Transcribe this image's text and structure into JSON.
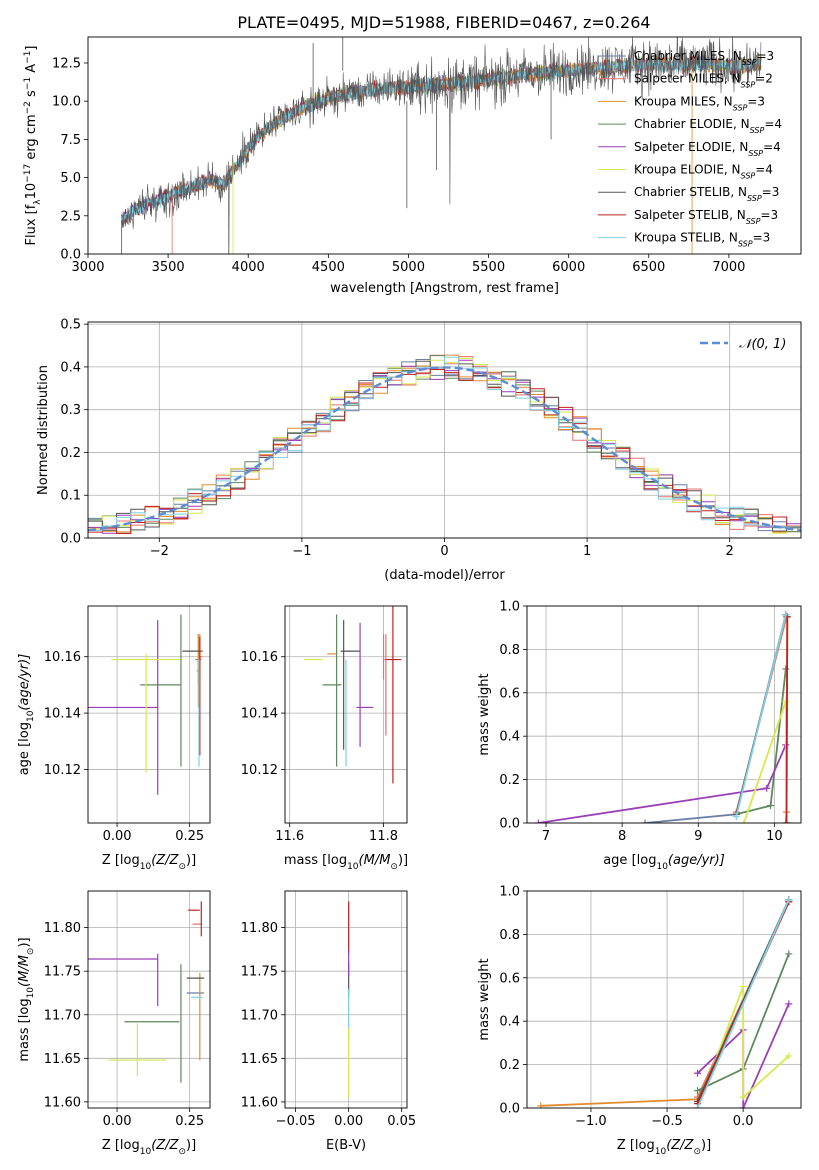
{
  "figure": {
    "title": "PLATE=0495, MJD=51988, FIBERID=0467, z=0.264"
  },
  "models": [
    {
      "name": "Chabrier MILES",
      "nssp": 3,
      "color": "#6a7fa3"
    },
    {
      "name": "Salpeter MILES",
      "nssp": 2,
      "color": "#e8706e"
    },
    {
      "name": "Kroupa MILES",
      "nssp": 3,
      "color": "#e38b2c"
    },
    {
      "name": "Chabrier ELODIE",
      "nssp": 4,
      "color": "#5c8a5c"
    },
    {
      "name": "Salpeter ELODIE",
      "nssp": 4,
      "color": "#9b3fb8"
    },
    {
      "name": "Kroupa ELODIE",
      "nssp": 4,
      "color": "#d6e84a"
    },
    {
      "name": "Chabrier STELIB",
      "nssp": 3,
      "color": "#555555"
    },
    {
      "name": "Salpeter STELIB",
      "nssp": 3,
      "color": "#c0201f"
    },
    {
      "name": "Kroupa STELIB",
      "nssp": 3,
      "color": "#7fd0e0"
    }
  ],
  "legend_suffix": "N",
  "legend_sub": "SSP",
  "chart_data": [
    {
      "id": "spectrum",
      "type": "line",
      "xlabel": "wavelength [Angstrom, rest frame]",
      "ylabel_main": "Flux [f",
      "ylabel_lambda": "λ",
      "ylabel_rest": "10",
      "ylabel_exp": "−17",
      "ylabel_units": " erg cm",
      "ylabel_exp2": "−2",
      "ylabel_s": " s",
      "ylabel_exp3": "−1",
      "ylabel_A": " A",
      "ylabel_exp4": "−1",
      "ylabel_close": "]",
      "xlim": [
        3000,
        7450
      ],
      "ylim": [
        0,
        14.2
      ],
      "xticks": [
        "3000",
        "3500",
        "4000",
        "4500",
        "5000",
        "5500",
        "6000",
        "6500",
        "7000"
      ],
      "yticks": [
        "0.0",
        "2.5",
        "5.0",
        "7.5",
        "10.0",
        "12.5"
      ],
      "continuum": [
        [
          3210,
          2.2
        ],
        [
          3300,
          3.0
        ],
        [
          3450,
          3.6
        ],
        [
          3600,
          4.2
        ],
        [
          3750,
          4.8
        ],
        [
          3850,
          4.6
        ],
        [
          3950,
          6.2
        ],
        [
          4050,
          7.6
        ],
        [
          4200,
          8.8
        ],
        [
          4350,
          9.6
        ],
        [
          4500,
          10.2
        ],
        [
          4700,
          10.6
        ],
        [
          4900,
          10.9
        ],
        [
          5100,
          11.0
        ],
        [
          5300,
          11.2
        ],
        [
          5500,
          11.4
        ],
        [
          5700,
          11.7
        ],
        [
          5900,
          11.9
        ],
        [
          6100,
          12.1
        ],
        [
          6300,
          12.3
        ],
        [
          6500,
          12.4
        ],
        [
          6700,
          12.4
        ],
        [
          6900,
          12.4
        ],
        [
          7100,
          12.3
        ],
        [
          7200,
          12.5
        ]
      ]
    },
    {
      "id": "residuals",
      "type": "step",
      "xlabel": "(data-model)/error",
      "ylabel": "Normed distribution",
      "xlim": [
        -2.5,
        2.5
      ],
      "ylim": [
        0,
        0.505
      ],
      "xticks": [
        "−2",
        "−1",
        "0",
        "1",
        "2"
      ],
      "yticks": [
        "0.0",
        "0.1",
        "0.2",
        "0.3",
        "0.4",
        "0.5"
      ],
      "gaussian_label": "𝒩(0, 1)",
      "gaussian_color": "#5b8ed6"
    },
    {
      "id": "age-vs-Z",
      "type": "errorbar",
      "xlabel": "Z [log",
      "xlabel_sub": "10",
      "xlabel_rest": "(Z/Z",
      "xlabel_sun": "⊙",
      "xlabel_close": ")]",
      "ylabel": "age  [log",
      "ylabel_sub": "10",
      "ylabel_rest": "(age/yr)]",
      "xlim": [
        -0.1,
        0.32
      ],
      "ylim": [
        10.101,
        10.178
      ],
      "xticks": [
        "0.00",
        "0.25"
      ],
      "yticks": [
        "10.12",
        "10.14",
        "10.16"
      ],
      "points": [
        {
          "m": 0,
          "x": 0.28,
          "y": 10.159,
          "xerr": 0.01,
          "yerr": 0.009
        },
        {
          "m": 1,
          "x": 0.285,
          "y": 10.16,
          "xerr": 0.008,
          "yerr": 0.008
        },
        {
          "m": 2,
          "x": 0.28,
          "y": 10.155,
          "xerr": 0.006,
          "yerr": 0.013
        },
        {
          "m": 3,
          "x": 0.15,
          "y": 10.15,
          "xerr": 0.07,
          "yerr": 0.0
        },
        {
          "m": 4,
          "x": 0.0,
          "y": 10.142,
          "xerr": 0.14,
          "yerr": 0.0
        },
        {
          "m": 4,
          "x": 0.14,
          "y": 10.142,
          "xerr": 0.0,
          "yerr": 0.031
        },
        {
          "m": 5,
          "x": 0.1,
          "y": 10.159,
          "xerr": 0.12,
          "yerr": 0.0
        },
        {
          "m": 5,
          "x": 0.1,
          "y": 10.14,
          "xerr": 0.0,
          "yerr": 0.021
        },
        {
          "m": 3,
          "x": 0.22,
          "y": 10.148,
          "xerr": 0.0,
          "yerr": 0.027
        },
        {
          "m": 6,
          "x": 0.26,
          "y": 10.162,
          "xerr": 0.035,
          "yerr": 0.0
        },
        {
          "m": 7,
          "x": 0.285,
          "y": 10.146,
          "xerr": 0.0,
          "yerr": 0.021
        },
        {
          "m": 8,
          "x": 0.282,
          "y": 10.14,
          "xerr": 0.0,
          "yerr": 0.019
        }
      ]
    },
    {
      "id": "age-vs-mass",
      "type": "errorbar",
      "xlabel": "mass [log",
      "xlabel_sub": "10",
      "xlabel_rest": "(M/M",
      "xlabel_sun": "⊙",
      "xlabel_close": ")]",
      "xlim": [
        11.59,
        11.85
      ],
      "ylim": [
        10.101,
        10.178
      ],
      "xticks": [
        "11.6",
        "11.8"
      ],
      "yticks": [
        "10.12",
        "10.14",
        "10.16"
      ],
      "points": [
        {
          "m": 0,
          "x": 11.72,
          "y": 10.162,
          "xerr": 0.012,
          "yerr": 0.0
        },
        {
          "m": 1,
          "x": 11.8,
          "y": 10.16,
          "xerr": 0.0,
          "yerr": 0.008
        },
        {
          "m": 2,
          "x": 11.69,
          "y": 10.161,
          "xerr": 0.01,
          "yerr": 0.0
        },
        {
          "m": 3,
          "x": 11.69,
          "y": 10.15,
          "xerr": 0.02,
          "yerr": 0.0
        },
        {
          "m": 3,
          "x": 11.7,
          "y": 10.148,
          "xerr": 0.0,
          "yerr": 0.027
        },
        {
          "m": 4,
          "x": 11.76,
          "y": 10.142,
          "xerr": 0.018,
          "yerr": 0.0
        },
        {
          "m": 4,
          "x": 11.75,
          "y": 10.15,
          "xerr": 0.0,
          "yerr": 0.022
        },
        {
          "m": 5,
          "x": 11.65,
          "y": 10.159,
          "xerr": 0.02,
          "yerr": 0.0
        },
        {
          "m": 6,
          "x": 11.73,
          "y": 10.162,
          "xerr": 0.02,
          "yerr": 0.0
        },
        {
          "m": 6,
          "x": 11.715,
          "y": 10.15,
          "xerr": 0.0,
          "yerr": 0.023
        },
        {
          "m": 7,
          "x": 11.82,
          "y": 10.159,
          "xerr": 0.018,
          "yerr": 0.0
        },
        {
          "m": 7,
          "x": 11.82,
          "y": 10.148,
          "xerr": 0.0,
          "yerr": 0.033
        },
        {
          "m": 8,
          "x": 11.72,
          "y": 10.14,
          "xerr": 0.0,
          "yerr": 0.019
        },
        {
          "m": 1,
          "x": 11.805,
          "y": 10.15,
          "xerr": 0.0,
          "yerr": 0.018
        }
      ]
    },
    {
      "id": "weight-vs-age",
      "type": "line",
      "xlabel": "age  [log",
      "xlabel_sub": "10",
      "xlabel_rest": "(age/yr)]",
      "ylabel": "mass weight",
      "xlim": [
        6.75,
        10.35
      ],
      "ylim": [
        0,
        1.0
      ],
      "xticks": [
        "7",
        "8",
        "9",
        "10"
      ],
      "yticks": [
        "0.0",
        "0.2",
        "0.4",
        "0.6",
        "0.8",
        "1.0"
      ],
      "series": [
        {
          "m": 0,
          "x": [
            8.3,
            9.5,
            10.15
          ],
          "y": [
            0.0,
            0.04,
            0.96
          ]
        },
        {
          "m": 1,
          "x": [
            9.5,
            10.16
          ],
          "y": [
            0.05,
            0.95
          ]
        },
        {
          "m": 2,
          "x": [
            10.15,
            10.16,
            10.17
          ],
          "y": [
            0.0,
            0.05,
            0.95
          ]
        },
        {
          "m": 3,
          "x": [
            9.5,
            9.95,
            10.15
          ],
          "y": [
            0.04,
            0.08,
            0.71
          ]
        },
        {
          "m": 4,
          "x": [
            6.9,
            9.9,
            10.15
          ],
          "y": [
            0.0,
            0.16,
            0.36
          ]
        },
        {
          "m": 5,
          "x": [
            9.6,
            10.15,
            10.16
          ],
          "y": [
            0.0,
            0.56,
            0.0
          ]
        },
        {
          "m": 6,
          "x": [
            9.5,
            10.15
          ],
          "y": [
            0.04,
            0.96
          ]
        },
        {
          "m": 7,
          "x": [
            10.16,
            10.17
          ],
          "y": [
            0.0,
            0.95
          ]
        },
        {
          "m": 8,
          "x": [
            9.5,
            10.15
          ],
          "y": [
            0.03,
            0.96
          ]
        }
      ]
    },
    {
      "id": "mass-vs-Z",
      "type": "errorbar",
      "xlabel": "Z [log",
      "xlabel_sub": "10",
      "xlabel_rest": "(Z/Z",
      "xlabel_sun": "⊙",
      "xlabel_close": ")]",
      "ylabel": "mass [log",
      "ylabel_sub": "10",
      "ylabel_rest": "(M/M",
      "ylabel_sun": "⊙",
      "ylabel_close": ")]",
      "xlim": [
        -0.1,
        0.32
      ],
      "ylim": [
        11.593,
        11.842
      ],
      "xticks": [
        "0.00",
        "0.25"
      ],
      "yticks": [
        "11.60",
        "11.65",
        "11.70",
        "11.75",
        "11.80"
      ],
      "points": [
        {
          "m": 0,
          "x": 0.27,
          "y": 11.725,
          "xerr": 0.03,
          "yerr": 0.0
        },
        {
          "m": 1,
          "x": 0.275,
          "y": 11.804,
          "xerr": 0.015,
          "yerr": 0.0
        },
        {
          "m": 2,
          "x": 0.285,
          "y": 11.698,
          "xerr": 0.0,
          "yerr": 0.05
        },
        {
          "m": 3,
          "x": 0.12,
          "y": 11.692,
          "xerr": 0.095,
          "yerr": 0.0
        },
        {
          "m": 3,
          "x": 0.22,
          "y": 11.69,
          "xerr": 0.0,
          "yerr": 0.068
        },
        {
          "m": 4,
          "x": 0.0,
          "y": 11.764,
          "xerr": 0.14,
          "yerr": 0.0
        },
        {
          "m": 4,
          "x": 0.14,
          "y": 11.74,
          "xerr": 0.0,
          "yerr": 0.03
        },
        {
          "m": 5,
          "x": 0.07,
          "y": 11.648,
          "xerr": 0.1,
          "yerr": 0.0
        },
        {
          "m": 5,
          "x": 0.07,
          "y": 11.66,
          "xerr": 0.0,
          "yerr": 0.03
        },
        {
          "m": 6,
          "x": 0.27,
          "y": 11.742,
          "xerr": 0.03,
          "yerr": 0.0
        },
        {
          "m": 7,
          "x": 0.265,
          "y": 11.82,
          "xerr": 0.02,
          "yerr": 0.0
        },
        {
          "m": 7,
          "x": 0.29,
          "y": 11.81,
          "xerr": 0.0,
          "yerr": 0.02
        },
        {
          "m": 8,
          "x": 0.275,
          "y": 11.72,
          "xerr": 0.02,
          "yerr": 0.0
        }
      ]
    },
    {
      "id": "mass-vs-EBV",
      "type": "errorbar",
      "xlabel": "E(B-V)",
      "xlim": [
        -0.06,
        0.055
      ],
      "ylim": [
        11.593,
        11.842
      ],
      "xticks": [
        "−0.05",
        "0.00",
        "0.05"
      ],
      "yticks": [
        "11.60",
        "11.65",
        "11.70",
        "11.75",
        "11.80"
      ],
      "points": [
        {
          "m": 7,
          "x": 0.0,
          "y": 11.8,
          "xerr": 0.0,
          "yerr": 0.03
        },
        {
          "m": 6,
          "x": 0.0,
          "y": 11.74,
          "xerr": 0.0,
          "yerr": 0.02
        },
        {
          "m": 8,
          "x": 0.0,
          "y": 11.7,
          "xerr": 0.0,
          "yerr": 0.03
        },
        {
          "m": 5,
          "x": 0.0,
          "y": 11.645,
          "xerr": 0.0,
          "yerr": 0.04
        },
        {
          "m": 4,
          "x": 0.0,
          "y": 11.76,
          "xerr": 0.0,
          "yerr": 0.015
        }
      ]
    },
    {
      "id": "weight-vs-Z",
      "type": "line",
      "xlabel": "Z [log",
      "xlabel_sub": "10",
      "xlabel_rest": "(Z/Z",
      "xlabel_sun": "⊙",
      "xlabel_close": ")]",
      "ylabel": "mass weight",
      "xlim": [
        -1.42,
        0.38
      ],
      "ylim": [
        0,
        1.0
      ],
      "xticks": [
        "−1.0",
        "−0.5",
        "0.0"
      ],
      "yticks": [
        "0.0",
        "0.2",
        "0.4",
        "0.6",
        "0.8",
        "1.0"
      ],
      "series": [
        {
          "m": 0,
          "x": [
            -0.3,
            0.3
          ],
          "y": [
            0.04,
            0.96
          ]
        },
        {
          "m": 1,
          "x": [
            -0.3,
            0.3
          ],
          "y": [
            0.05,
            0.95
          ]
        },
        {
          "m": 2,
          "x": [
            -1.33,
            -0.3,
            0.3
          ],
          "y": [
            0.01,
            0.04,
            0.95
          ]
        },
        {
          "m": 3,
          "x": [
            -0.3,
            0.0,
            0.3
          ],
          "y": [
            0.08,
            0.18,
            0.71
          ]
        },
        {
          "m": 4,
          "x": [
            -0.3,
            0.0,
            0.0,
            0.3
          ],
          "y": [
            0.16,
            0.36,
            0.0,
            0.48
          ]
        },
        {
          "m": 5,
          "x": [
            -0.3,
            0.0,
            0.0,
            0.3
          ],
          "y": [
            0.0,
            0.56,
            0.05,
            0.24
          ]
        },
        {
          "m": 6,
          "x": [
            -0.3,
            0.3
          ],
          "y": [
            0.03,
            0.96
          ]
        },
        {
          "m": 7,
          "x": [
            -0.3,
            0.3
          ],
          "y": [
            0.02,
            0.95
          ]
        },
        {
          "m": 8,
          "x": [
            -0.3,
            0.3
          ],
          "y": [
            0.0,
            0.96
          ]
        }
      ]
    }
  ]
}
